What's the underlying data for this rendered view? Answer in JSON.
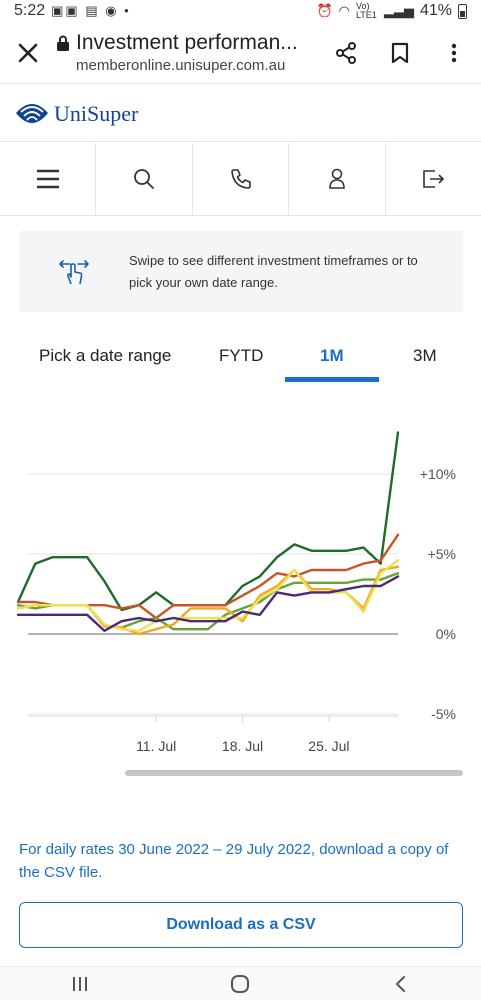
{
  "status_bar": {
    "time": "5:22",
    "left_icons": "▣▣ ▤ ◉ •",
    "network": "Vo) LTE1",
    "battery": "41%"
  },
  "browser": {
    "title": "Investment performan...",
    "domain": "memberonline.unisuper.com.au",
    "icons": [
      "close-icon",
      "lock-icon",
      "share-icon",
      "bookmark-icon",
      "more-vert-icon"
    ]
  },
  "brand": {
    "name": "UniSuper"
  },
  "nav": {
    "icons": [
      "menu-icon",
      "search-icon",
      "phone-icon",
      "user-icon",
      "logout-icon"
    ]
  },
  "hint": {
    "text": "Swipe to see different investment timeframes or to pick your own date range."
  },
  "tabs": [
    {
      "label": "Pick a date range"
    },
    {
      "label": "FYTD"
    },
    {
      "label": "1M"
    },
    {
      "label": "3M"
    }
  ],
  "chart_data": {
    "type": "line",
    "x_labels": [
      "11. Jul",
      "18. Jul",
      "25. Jul"
    ],
    "y_ticks": [
      "+10%",
      "+5%",
      "0%",
      "-5%"
    ],
    "ylim": [
      -5,
      13
    ],
    "x": [
      "29 Jun",
      "30 Jun",
      "1 Jul",
      "4 Jul",
      "5 Jul",
      "6 Jul",
      "7 Jul",
      "8 Jul",
      "11 Jul",
      "12 Jul",
      "13 Jul",
      "14 Jul",
      "15 Jul",
      "18 Jul",
      "19 Jul",
      "20 Jul",
      "21 Jul",
      "22 Jul",
      "25 Jul",
      "26 Jul",
      "27 Jul",
      "28 Jul",
      "29 Jul"
    ],
    "series": [
      {
        "color": "#1e6b2a",
        "values": [
          2.0,
          4.4,
          4.8,
          4.8,
          4.8,
          3.3,
          1.5,
          1.8,
          2.6,
          1.8,
          1.8,
          1.8,
          1.8,
          3.0,
          3.6,
          4.8,
          5.6,
          5.2,
          5.2,
          5.2,
          5.4,
          4.4,
          12.6
        ]
      },
      {
        "color": "#c8552a",
        "values": [
          2.0,
          2.0,
          1.8,
          1.8,
          1.8,
          1.8,
          1.6,
          1.8,
          1.0,
          1.8,
          1.8,
          1.8,
          1.8,
          2.4,
          3.0,
          3.8,
          3.6,
          4.0,
          4.0,
          4.0,
          4.4,
          4.6,
          6.2
        ]
      },
      {
        "color": "#6aa23a",
        "values": [
          1.8,
          1.6,
          1.8,
          1.8,
          1.8,
          0.5,
          0.4,
          0.8,
          1.0,
          0.3,
          0.3,
          0.3,
          1.2,
          1.6,
          2.0,
          2.8,
          3.2,
          3.2,
          3.2,
          3.2,
          3.4,
          3.4,
          3.8
        ]
      },
      {
        "color": "#f0a822",
        "values": [
          1.6,
          1.8,
          1.8,
          1.8,
          1.8,
          0.5,
          0.4,
          0.0,
          0.3,
          0.6,
          1.6,
          1.6,
          1.6,
          0.8,
          2.4,
          3.0,
          4.0,
          2.8,
          2.8,
          2.6,
          1.6,
          4.0,
          4.2
        ]
      },
      {
        "color": "#f0e050",
        "values": [
          1.6,
          1.8,
          1.8,
          1.8,
          1.8,
          0.6,
          0.3,
          0.2,
          0.8,
          1.0,
          1.0,
          1.0,
          1.0,
          1.0,
          2.2,
          2.8,
          4.0,
          2.6,
          2.6,
          2.6,
          1.4,
          3.8,
          4.6
        ]
      },
      {
        "color": "#4a2a78",
        "values": [
          1.2,
          1.2,
          1.2,
          1.2,
          1.2,
          0.2,
          0.8,
          1.0,
          0.8,
          1.0,
          0.8,
          0.8,
          0.8,
          1.4,
          1.2,
          2.6,
          2.4,
          2.6,
          2.6,
          2.8,
          3.0,
          3.0,
          3.6
        ]
      }
    ],
    "grid": true,
    "legend": "none"
  },
  "csv": {
    "note": "For daily rates 30 June 2022 – 29 July 2022, download a copy of the CSV file.",
    "button": "Download as a CSV"
  },
  "sys_nav": {
    "icons": [
      "recents-icon",
      "home-icon",
      "back-icon"
    ]
  }
}
